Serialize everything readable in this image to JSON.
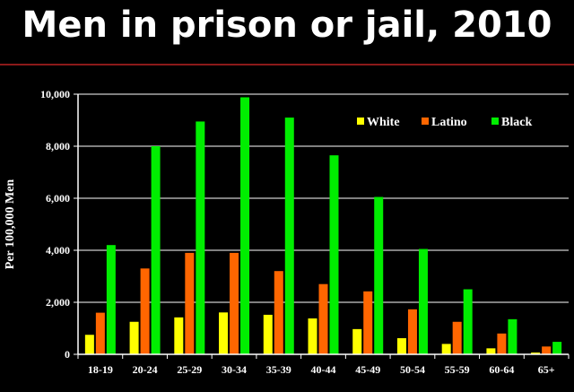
{
  "slide": {
    "title": "Men in prison or jail, 2010"
  },
  "colors": {
    "background": "#000000",
    "rule": "#8b1a1a",
    "axis": "#ffffff"
  },
  "chart_data": {
    "type": "bar",
    "title": "",
    "xlabel": "",
    "ylabel": "Per 100,000 Men",
    "ylim": [
      0,
      10000
    ],
    "yticks": [
      0,
      2000,
      4000,
      6000,
      8000,
      10000
    ],
    "ytick_labels": [
      "0",
      "2,000",
      "4,000",
      "6,000",
      "8,000",
      "10,000"
    ],
    "grid": true,
    "legend_position": "top-right",
    "categories": [
      "18-19",
      "20-24",
      "25-29",
      "30-34",
      "35-39",
      "40-44",
      "45-49",
      "50-54",
      "55-59",
      "60-64",
      "65+"
    ],
    "series": [
      {
        "name": "White",
        "color": "#ffff00",
        "values": [
          750,
          1250,
          1420,
          1610,
          1520,
          1380,
          970,
          620,
          400,
          230,
          70
        ]
      },
      {
        "name": "Latino",
        "color": "#ff6600",
        "values": [
          1600,
          3300,
          3900,
          3900,
          3200,
          2700,
          2420,
          1730,
          1250,
          800,
          300
        ]
      },
      {
        "name": "Black",
        "color": "#00ee00",
        "values": [
          4200,
          8000,
          8950,
          9880,
          9100,
          7650,
          6050,
          4050,
          2500,
          1350,
          480
        ]
      }
    ]
  }
}
